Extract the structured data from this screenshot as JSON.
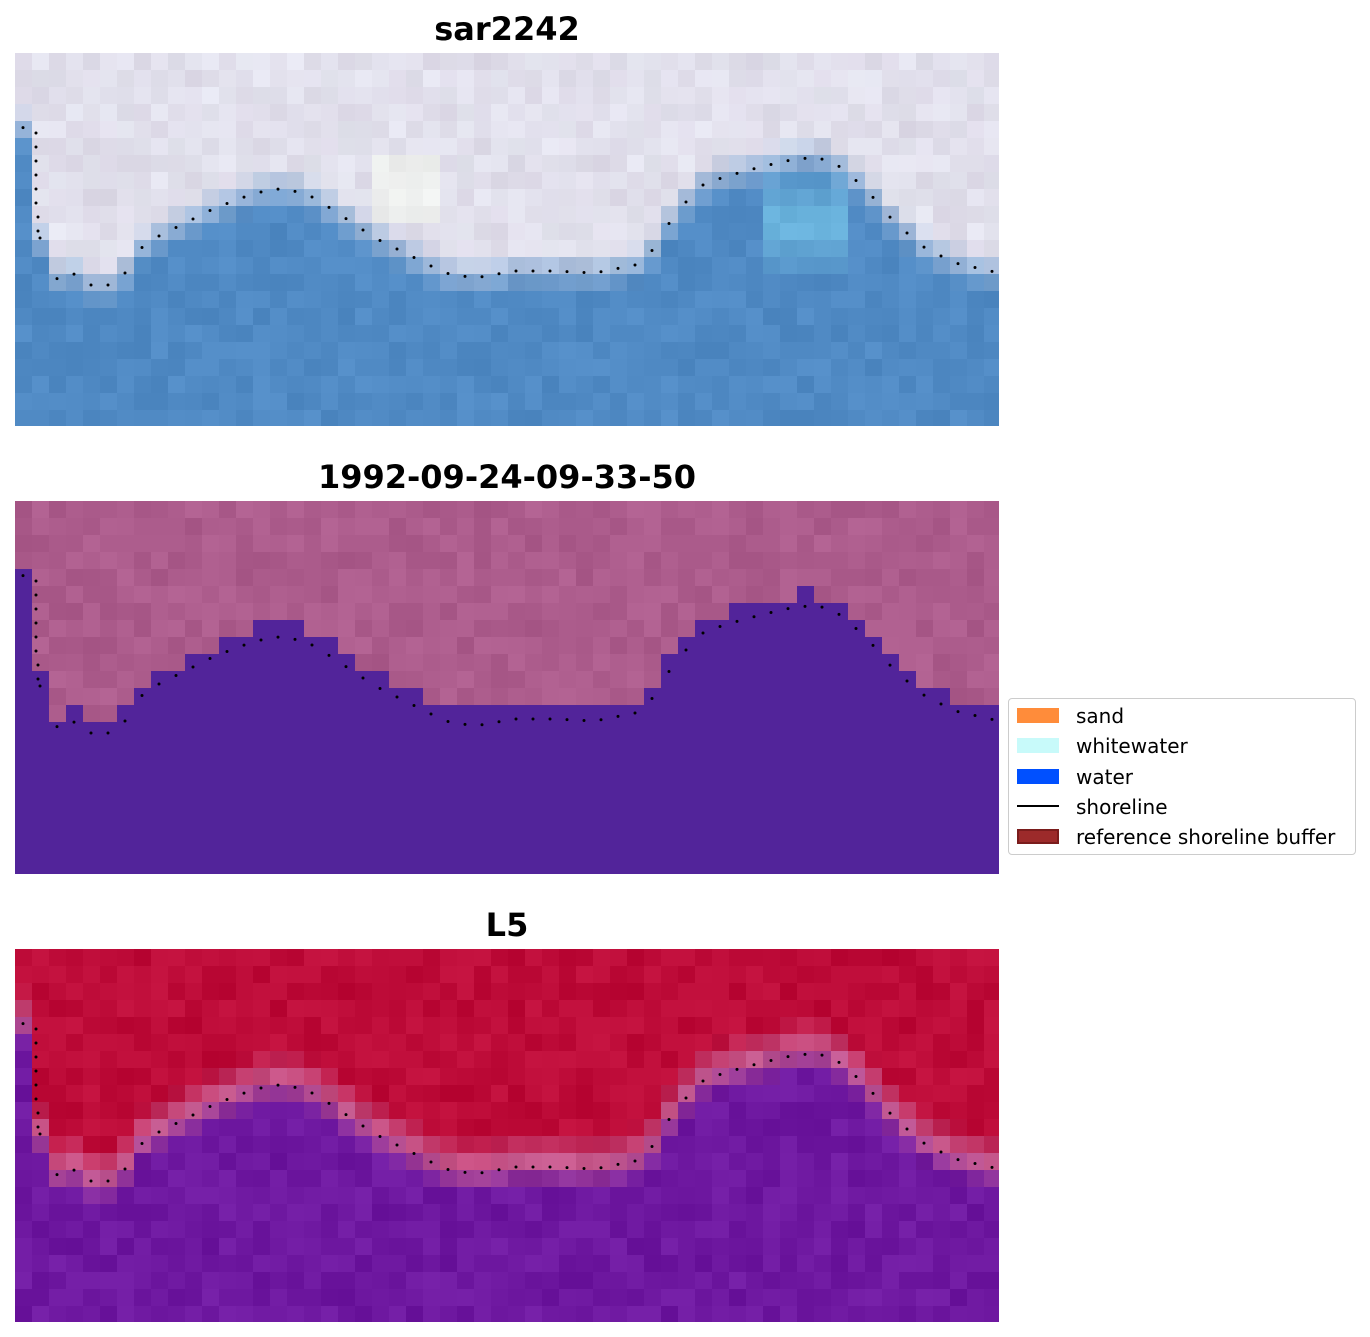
{
  "panels": [
    {
      "id": "rgb",
      "title": "sar2242",
      "kind": "rgb"
    },
    {
      "id": "classes",
      "title": "1992-09-24-09-33-50",
      "kind": "classes",
      "colors": {
        "land": "#ac5c8c",
        "water": "#52249a"
      }
    },
    {
      "id": "mndwi",
      "title": "L5",
      "kind": "index",
      "colors": {
        "land": "#bd0b38",
        "edge": "#c75c90",
        "water": "#6e18a0"
      }
    }
  ],
  "legend": {
    "items": [
      {
        "label": "sand",
        "type": "patch",
        "color": "#ff8c3a",
        "icon": "sand-patch-icon"
      },
      {
        "label": "whitewater",
        "type": "patch",
        "color": "#c8fafa",
        "icon": "whitewater-patch-icon"
      },
      {
        "label": "water",
        "type": "patch",
        "color": "#0050ff",
        "icon": "water-patch-icon"
      },
      {
        "label": "shoreline",
        "type": "line",
        "color": "#000000",
        "icon": "shoreline-line-icon"
      },
      {
        "label": "reference shoreline buffer",
        "type": "patch",
        "color": "#9c2a2a",
        "edge": "#7a1c1c",
        "icon": "buffer-patch-icon"
      }
    ]
  },
  "shoreline": {
    "color": "#000000",
    "marker": "dotted"
  }
}
